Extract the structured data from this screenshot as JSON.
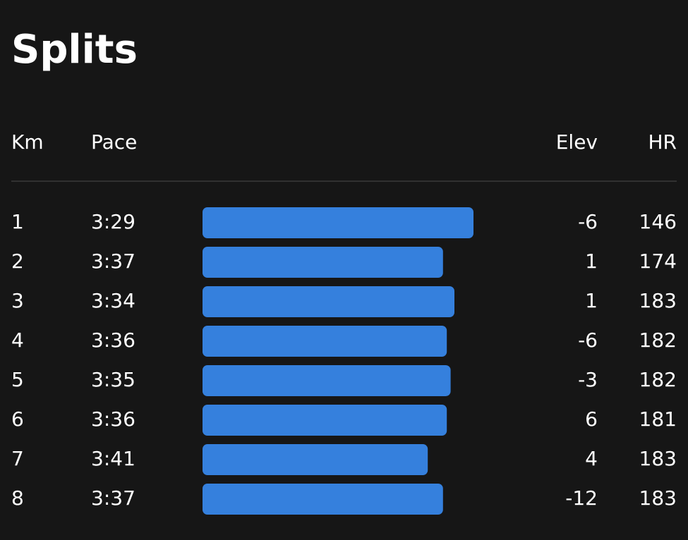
{
  "header": {
    "title": "Splits"
  },
  "table": {
    "columns": [
      "Km",
      "Pace",
      "Elev",
      "HR"
    ],
    "rows": [
      [
        1,
        {
          "value": 209,
          "label": "3:29"
        },
        -6,
        146
      ],
      [
        2,
        {
          "value": 217,
          "label": "3:37"
        },
        1,
        174
      ],
      [
        3,
        {
          "value": 214,
          "label": "3:34"
        },
        1,
        183
      ],
      [
        4,
        {
          "value": 216,
          "label": "3:36"
        },
        -6,
        182
      ],
      [
        5,
        {
          "value": 215,
          "label": "3:35"
        },
        -3,
        182
      ],
      [
        6,
        {
          "value": 216,
          "label": "3:36"
        },
        6,
        181
      ],
      [
        7,
        {
          "value": 221,
          "label": "3:41"
        },
        4,
        183
      ],
      [
        8,
        {
          "value": 217,
          "label": "3:37"
        },
        -12,
        183
      ]
    ]
  }
}
